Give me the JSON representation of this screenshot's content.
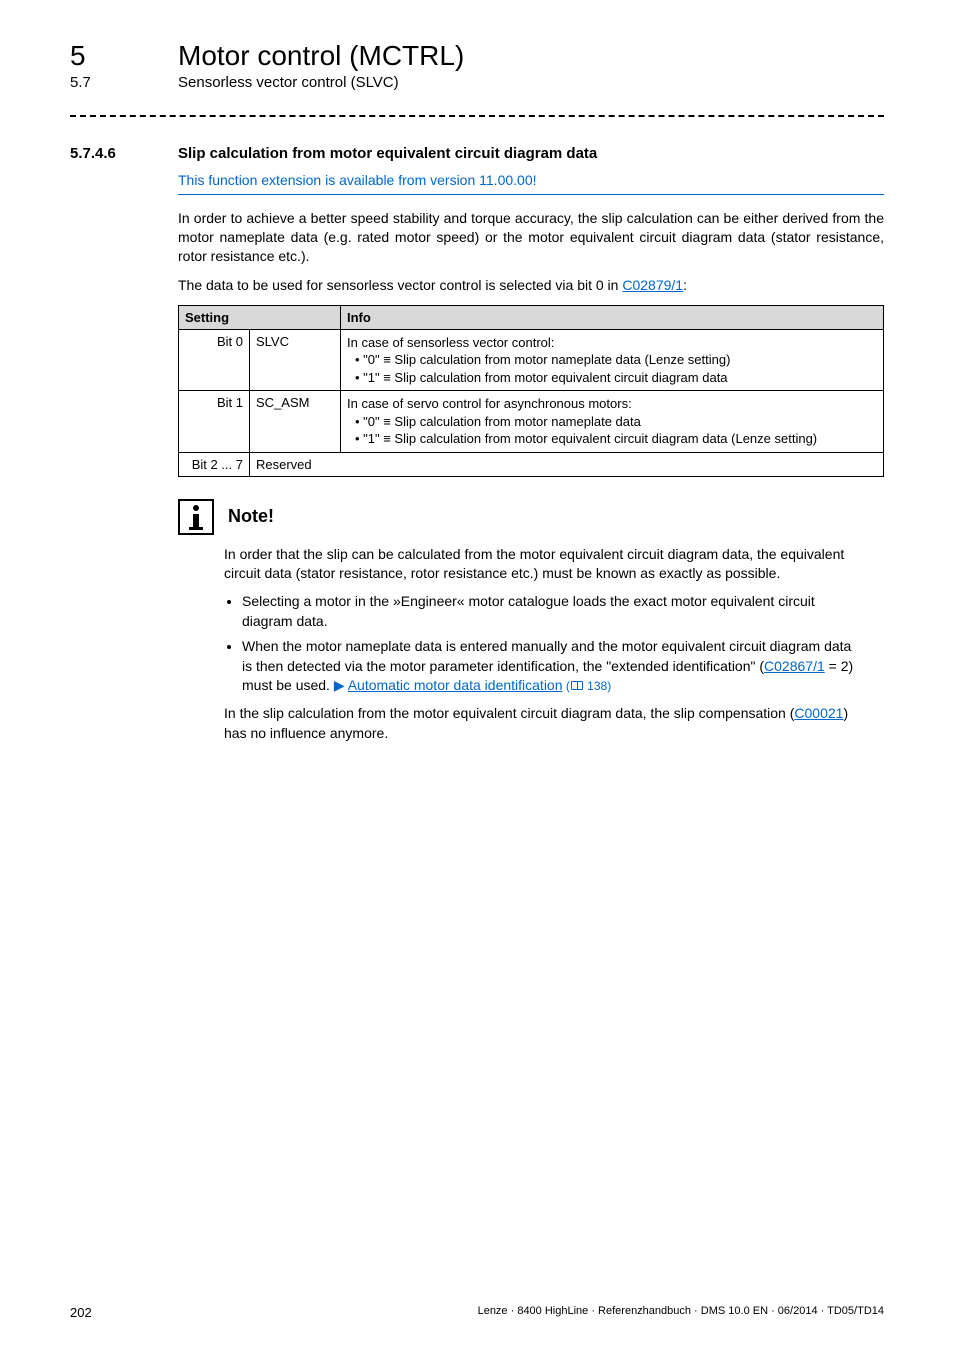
{
  "chapter": {
    "num": "5",
    "title": "Motor control (MCTRL)"
  },
  "section": {
    "num": "5.7",
    "title": "Sensorless vector control (SLVC)"
  },
  "heading": {
    "num": "5.7.4.6",
    "text": "Slip calculation from motor equivalent circuit diagram data"
  },
  "availability": "This function extension is available from version 11.00.00!",
  "para1": "In order to achieve a better speed stability and torque accuracy, the slip calculation can be either derived from the motor nameplate data (e.g. rated motor speed) or the motor equivalent circuit diagram data (stator resistance, rotor resistance etc.).",
  "para2_prefix": "The data to be used for sensorless vector control is selected via bit 0 in ",
  "para2_link": "C02879/1",
  "para2_suffix": ":",
  "table": {
    "headers": [
      "Setting",
      "Info"
    ],
    "rows": [
      {
        "bit": "Bit 0",
        "name": "SLVC",
        "info_lines": [
          "In case of sensorless vector control:",
          " • \"0\" ≡ Slip calculation from motor nameplate data (Lenze setting)",
          " • \"1\" ≡ Slip calculation from motor equivalent circuit diagram data"
        ]
      },
      {
        "bit": "Bit 1",
        "name": "SC_ASM",
        "info_lines": [
          "In case of servo control for asynchronous motors:",
          " • \"0\" ≡ Slip calculation from motor nameplate data",
          " • \"1\" ≡ Slip calculation from motor equivalent circuit diagram data (Lenze setting)"
        ]
      },
      {
        "bit": "Bit 2 ... 7",
        "name": "Reserved",
        "info_lines": []
      }
    ]
  },
  "note": {
    "title": "Note!",
    "p1": "In order that the slip can be calculated from the motor equivalent circuit diagram data, the equivalent circuit data (stator resistance, rotor resistance etc.) must be known as exactly as possible.",
    "bullets": [
      {
        "text": "Selecting a motor in the »Engineer« motor catalogue loads the exact motor equivalent circuit diagram data."
      },
      {
        "text_prefix": "When the motor nameplate data is entered manually and the motor equivalent circuit diagram data is then detected via the motor parameter identification, the \"extended identification\" (",
        "link1": "C02867/1",
        "text_mid": " = 2) must be used.  ",
        "arrow": "▶",
        "link2": "Automatic motor data identification",
        "pageref": " 138)"
      }
    ],
    "p2_prefix": "In the slip calculation from the motor equivalent circuit diagram data, the slip compensation (",
    "p2_link": "C00021",
    "p2_suffix": ") has no influence anymore."
  },
  "footer": {
    "page": "202",
    "text": "Lenze · 8400 HighLine · Referenzhandbuch · DMS 10.0 EN · 06/2014 · TD05/TD14"
  },
  "colors": {
    "link": "#0066cc",
    "header_bg": "#d9d9d9"
  }
}
